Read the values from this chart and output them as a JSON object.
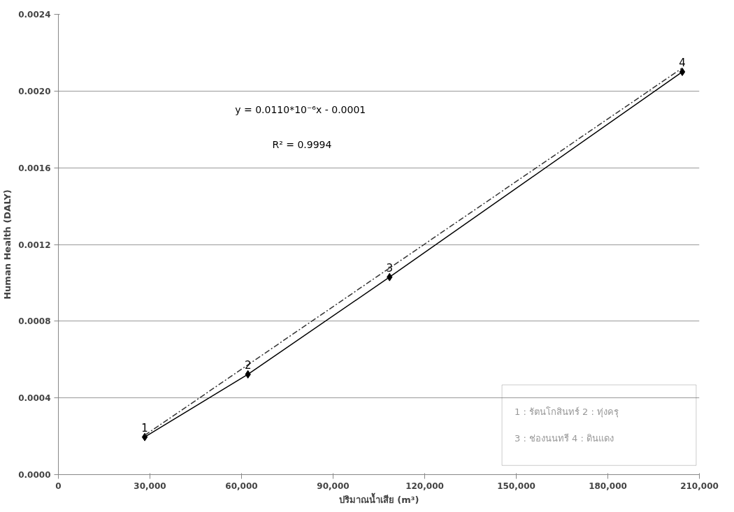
{
  "chart_data": {
    "type": "line",
    "xlabel": "ปริมาณน้ำเสีย (m³)",
    "ylabel": "Human Health (DALY)",
    "x": [
      28300,
      62100,
      108500,
      204400
    ],
    "series": [
      {
        "color": "#000000",
        "values": [
          0.000196,
          0.000523,
          0.00103,
          0.0021
        ],
        "marker": "diamond",
        "line_style": "solid"
      },
      {
        "type": "line",
        "x": [
          28300,
          204400
        ],
        "color": "#333333",
        "values": [
          0.000205,
          0.00212
        ],
        "marker": "none",
        "line_style": "dashed"
      }
    ],
    "xlim": [
      0,
      210000
    ],
    "ylim": [
      0,
      0.0024
    ],
    "xticks": [
      0,
      {
        "value": 30000,
        "label": "30,000"
      },
      {
        "value": 60000,
        "label": "60,000"
      },
      {
        "value": 90000,
        "label": "90,000"
      },
      {
        "value": 120000,
        "label": "120,000"
      },
      {
        "value": 150000,
        "label": "150,000"
      },
      {
        "value": 180000,
        "label": "180,000"
      },
      {
        "value": 210000,
        "label": "210,000"
      }
    ],
    "yticks": [
      {
        "value": 0,
        "label": "0.0000"
      },
      {
        "value": 0.0004,
        "label": "0.0004"
      },
      {
        "value": 0.0008,
        "label": "0.0008"
      },
      {
        "value": 0.0012,
        "label": "0.0012"
      },
      {
        "value": 0.0016,
        "label": "0.0016"
      },
      {
        "value": 0.002,
        "label": "0.0020"
      },
      {
        "value": 0.0024,
        "label": "0.0024"
      }
    ],
    "grid": "y",
    "annotations": [
      {
        "text": "1",
        "x": 28300,
        "y": 0.000196
      },
      {
        "text": "2",
        "x": 62100,
        "y": 0.000523
      },
      {
        "text": "3",
        "x": 108500,
        "y": 0.00103
      },
      {
        "text": "4",
        "x": 204400,
        "y": 0.0021
      },
      "y = 0.0110*10⁻⁶x  - 0.0001",
      "R² = 0.9994",
      "1 : รัตนโกสินทร์    2 : ทุ่งครุ",
      "3 : ช่องนนทรี       4 : ดินแดง"
    ]
  }
}
